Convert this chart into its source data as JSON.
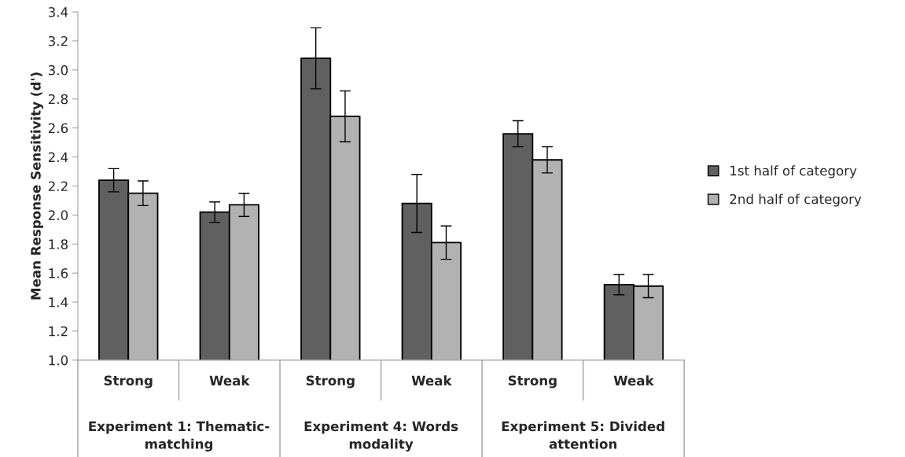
{
  "chart_data": {
    "type": "bar",
    "ylabel": "Mean Response Sensitivity (d')",
    "categories": [
      "Strong",
      "Weak",
      "Strong",
      "Weak",
      "Strong",
      "Weak"
    ],
    "series": [
      {
        "name": "1st half of category",
        "color": "#606060",
        "values": [
          2.24,
          2.02,
          3.08,
          2.08,
          2.56,
          1.52
        ],
        "errors": [
          0.08,
          0.07,
          0.21,
          0.2,
          0.09,
          0.07
        ]
      },
      {
        "name": "2nd half of category",
        "color": "#b2b2b2",
        "values": [
          2.15,
          2.07,
          2.68,
          1.81,
          2.38,
          1.51
        ],
        "errors": [
          0.085,
          0.08,
          0.175,
          0.115,
          0.09,
          0.08
        ]
      }
    ],
    "ylim": [
      1.0,
      3.4
    ],
    "yticks": [
      {
        "value": 1.0,
        "label": "1.0"
      },
      {
        "value": 1.2,
        "label": "1.2"
      },
      {
        "value": 1.4,
        "label": "1.4"
      },
      {
        "value": 1.6,
        "label": "1.6"
      },
      {
        "value": 1.8,
        "label": "1.8"
      },
      {
        "value": 2.0,
        "label": "2.0"
      },
      {
        "value": 2.2,
        "label": "2.2"
      },
      {
        "value": 2.4,
        "label": "2.4"
      },
      {
        "value": 2.6,
        "label": "2.6"
      },
      {
        "value": 2.8,
        "label": "2.8"
      },
      {
        "value": 3.0,
        "label": "3.0"
      },
      {
        "value": 3.2,
        "label": "3.2"
      },
      {
        "value": 3.4,
        "label": "3.4"
      }
    ],
    "annotations": [
      "Experiment 1: Thematic-matching",
      "Experiment 4: Words modality",
      "Experiment 5: Divided attention"
    ],
    "grid": false,
    "legend": "right"
  }
}
